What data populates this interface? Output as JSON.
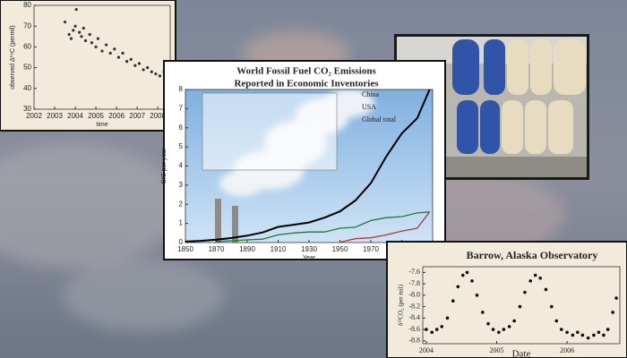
{
  "chart_data": [
    {
      "type": "scatter",
      "ylabel": "observed Δ¹⁴C (permil)",
      "xlabel": "time",
      "x": [
        2003.5,
        2003.7,
        2003.8,
        2003.9,
        2004.0,
        2004.05,
        2004.2,
        2004.3,
        2004.4,
        2004.5,
        2004.7,
        2004.8,
        2005.0,
        2005.1,
        2005.3,
        2005.5,
        2005.7,
        2005.9,
        2006.1,
        2006.3,
        2006.5,
        2006.7,
        2006.9,
        2007.1,
        2007.3,
        2007.5,
        2007.7,
        2007.9,
        2008.1,
        2008.3,
        2008.5
      ],
      "values": [
        72,
        66,
        64,
        68,
        70,
        78,
        67,
        65,
        69,
        63,
        66,
        62,
        60,
        64,
        58,
        61,
        57,
        59,
        55,
        57,
        53,
        54,
        51,
        52,
        49,
        50,
        48,
        47,
        46,
        48,
        45
      ],
      "color": "#333333",
      "xlim": [
        2002,
        2008.6
      ],
      "xticks": [
        2002,
        2003,
        2004,
        2005,
        2006,
        2007,
        2008
      ],
      "ylim": [
        30,
        80
      ],
      "yticks": [
        30,
        40,
        50,
        60,
        70,
        80
      ]
    },
    {
      "type": "line",
      "title": "World Fossil Fuel CO₂ Emissions",
      "subtitle": "Reported in Economic Inventories",
      "ylabel": "GtC per year",
      "xlabel": "Year",
      "x": [
        1850,
        1860,
        1870,
        1880,
        1890,
        1900,
        1910,
        1920,
        1930,
        1940,
        1950,
        1960,
        1970,
        1980,
        1990,
        2000,
        2008
      ],
      "series": [
        {
          "name": "China",
          "color": "#b03a3a",
          "values": [
            null,
            null,
            null,
            null,
            null,
            null,
            null,
            null,
            null,
            null,
            0.02,
            0.2,
            0.25,
            0.4,
            0.6,
            0.75,
            1.6
          ]
        },
        {
          "name": "USA",
          "color": "#1f7a3a",
          "values": [
            null,
            null,
            0.05,
            0.1,
            0.14,
            0.18,
            0.4,
            0.5,
            0.55,
            0.55,
            0.75,
            0.8,
            1.15,
            1.3,
            1.35,
            1.55,
            1.6
          ]
        },
        {
          "name": "Global total",
          "color": "#000000",
          "values": [
            0.05,
            0.09,
            0.15,
            0.24,
            0.36,
            0.53,
            0.82,
            0.93,
            1.05,
            1.3,
            1.63,
            2.2,
            3.1,
            4.5,
            5.7,
            6.5,
            8.0
          ]
        }
      ],
      "xlim": [
        1850,
        2010
      ],
      "xticks": [
        1850,
        1870,
        1890,
        1910,
        1930,
        1950,
        1970,
        1990,
        2010
      ],
      "ylim": [
        0,
        8
      ],
      "yticks": [
        0,
        1,
        2,
        3,
        4,
        5,
        6,
        7,
        8
      ]
    },
    {
      "type": "scatter",
      "title": "Barrow, Alaska Observatory",
      "ylabel": "δ¹³CO₂ (per mil)",
      "xlabel": "Date",
      "x": [
        2004.0,
        2004.08,
        2004.15,
        2004.22,
        2004.3,
        2004.38,
        2004.45,
        2004.52,
        2004.58,
        2004.65,
        2004.72,
        2004.8,
        2004.88,
        2004.95,
        2005.03,
        2005.1,
        2005.18,
        2005.25,
        2005.33,
        2005.4,
        2005.48,
        2005.55,
        2005.62,
        2005.7,
        2005.78,
        2005.85,
        2005.92,
        2006.0,
        2006.08,
        2006.15,
        2006.22,
        2006.3,
        2006.38,
        2006.45,
        2006.52,
        2006.58,
        2006.65,
        2006.7
      ],
      "values": [
        -8.6,
        -8.65,
        -8.6,
        -8.55,
        -8.4,
        -8.1,
        -7.85,
        -7.65,
        -7.6,
        -7.75,
        -8.0,
        -8.3,
        -8.5,
        -8.6,
        -8.65,
        -8.6,
        -8.55,
        -8.45,
        -8.2,
        -7.95,
        -7.75,
        -7.65,
        -7.7,
        -7.9,
        -8.2,
        -8.45,
        -8.6,
        -8.65,
        -8.7,
        -8.65,
        -8.7,
        -8.75,
        -8.7,
        -8.65,
        -8.7,
        -8.6,
        -8.3,
        -8.05
      ],
      "color": "#111111",
      "xlim": [
        2003.95,
        2006.75
      ],
      "xticks": [
        2004,
        2005,
        2006
      ],
      "ylim": [
        -8.85,
        -7.5
      ],
      "yticks": [
        -7.6,
        -7.8,
        {
          "value": -8,
          "label": "-8.0"
        },
        -8.2,
        -8.4,
        -8.6,
        -8.8
      ]
    }
  ]
}
